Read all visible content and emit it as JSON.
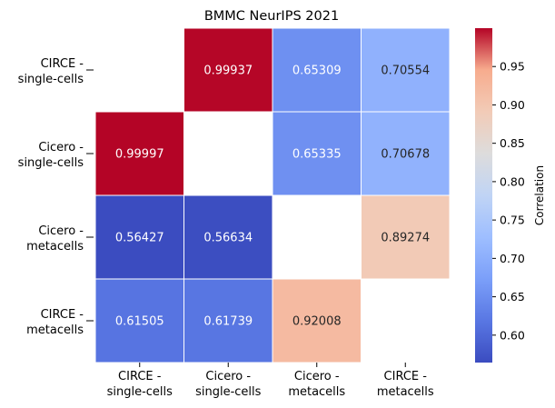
{
  "chart_data": {
    "type": "heatmap",
    "title": "BMMC NeurIPS 2021",
    "row_labels": [
      [
        "CIRCE -",
        "single-cells"
      ],
      [
        "Cicero -",
        "single-cells"
      ],
      [
        "Cicero -",
        "metacells"
      ],
      [
        "CIRCE -",
        "metacells"
      ]
    ],
    "col_labels": [
      [
        "CIRCE -",
        "single-cells"
      ],
      [
        "Cicero -",
        "single-cells"
      ],
      [
        "Cicero -",
        "metacells"
      ],
      [
        "CIRCE -",
        "metacells"
      ]
    ],
    "values": [
      [
        null,
        0.99937,
        0.65309,
        0.70554
      ],
      [
        0.99997,
        null,
        0.65335,
        0.70678
      ],
      [
        0.56427,
        0.56634,
        null,
        0.89274
      ],
      [
        0.61505,
        0.61739,
        0.92008,
        null
      ]
    ],
    "value_labels": [
      [
        "",
        "0.99937",
        "0.65309",
        "0.70554"
      ],
      [
        "0.99997",
        "",
        "0.65335",
        "0.70678"
      ],
      [
        "0.56427",
        "0.56634",
        "",
        "0.89274"
      ],
      [
        "0.61505",
        "0.61739",
        "0.92008",
        ""
      ]
    ],
    "colorbar": {
      "label": "Correlation",
      "colormap": "coolwarm",
      "vmin": 0.56427,
      "vmax": 0.99997,
      "ticks": [
        0.6,
        0.65,
        0.7,
        0.75,
        0.8,
        0.85,
        0.9,
        0.95
      ],
      "tick_labels": [
        "0.60",
        "0.65",
        "0.70",
        "0.75",
        "0.80",
        "0.85",
        "0.90",
        "0.95"
      ]
    },
    "grid": false
  }
}
